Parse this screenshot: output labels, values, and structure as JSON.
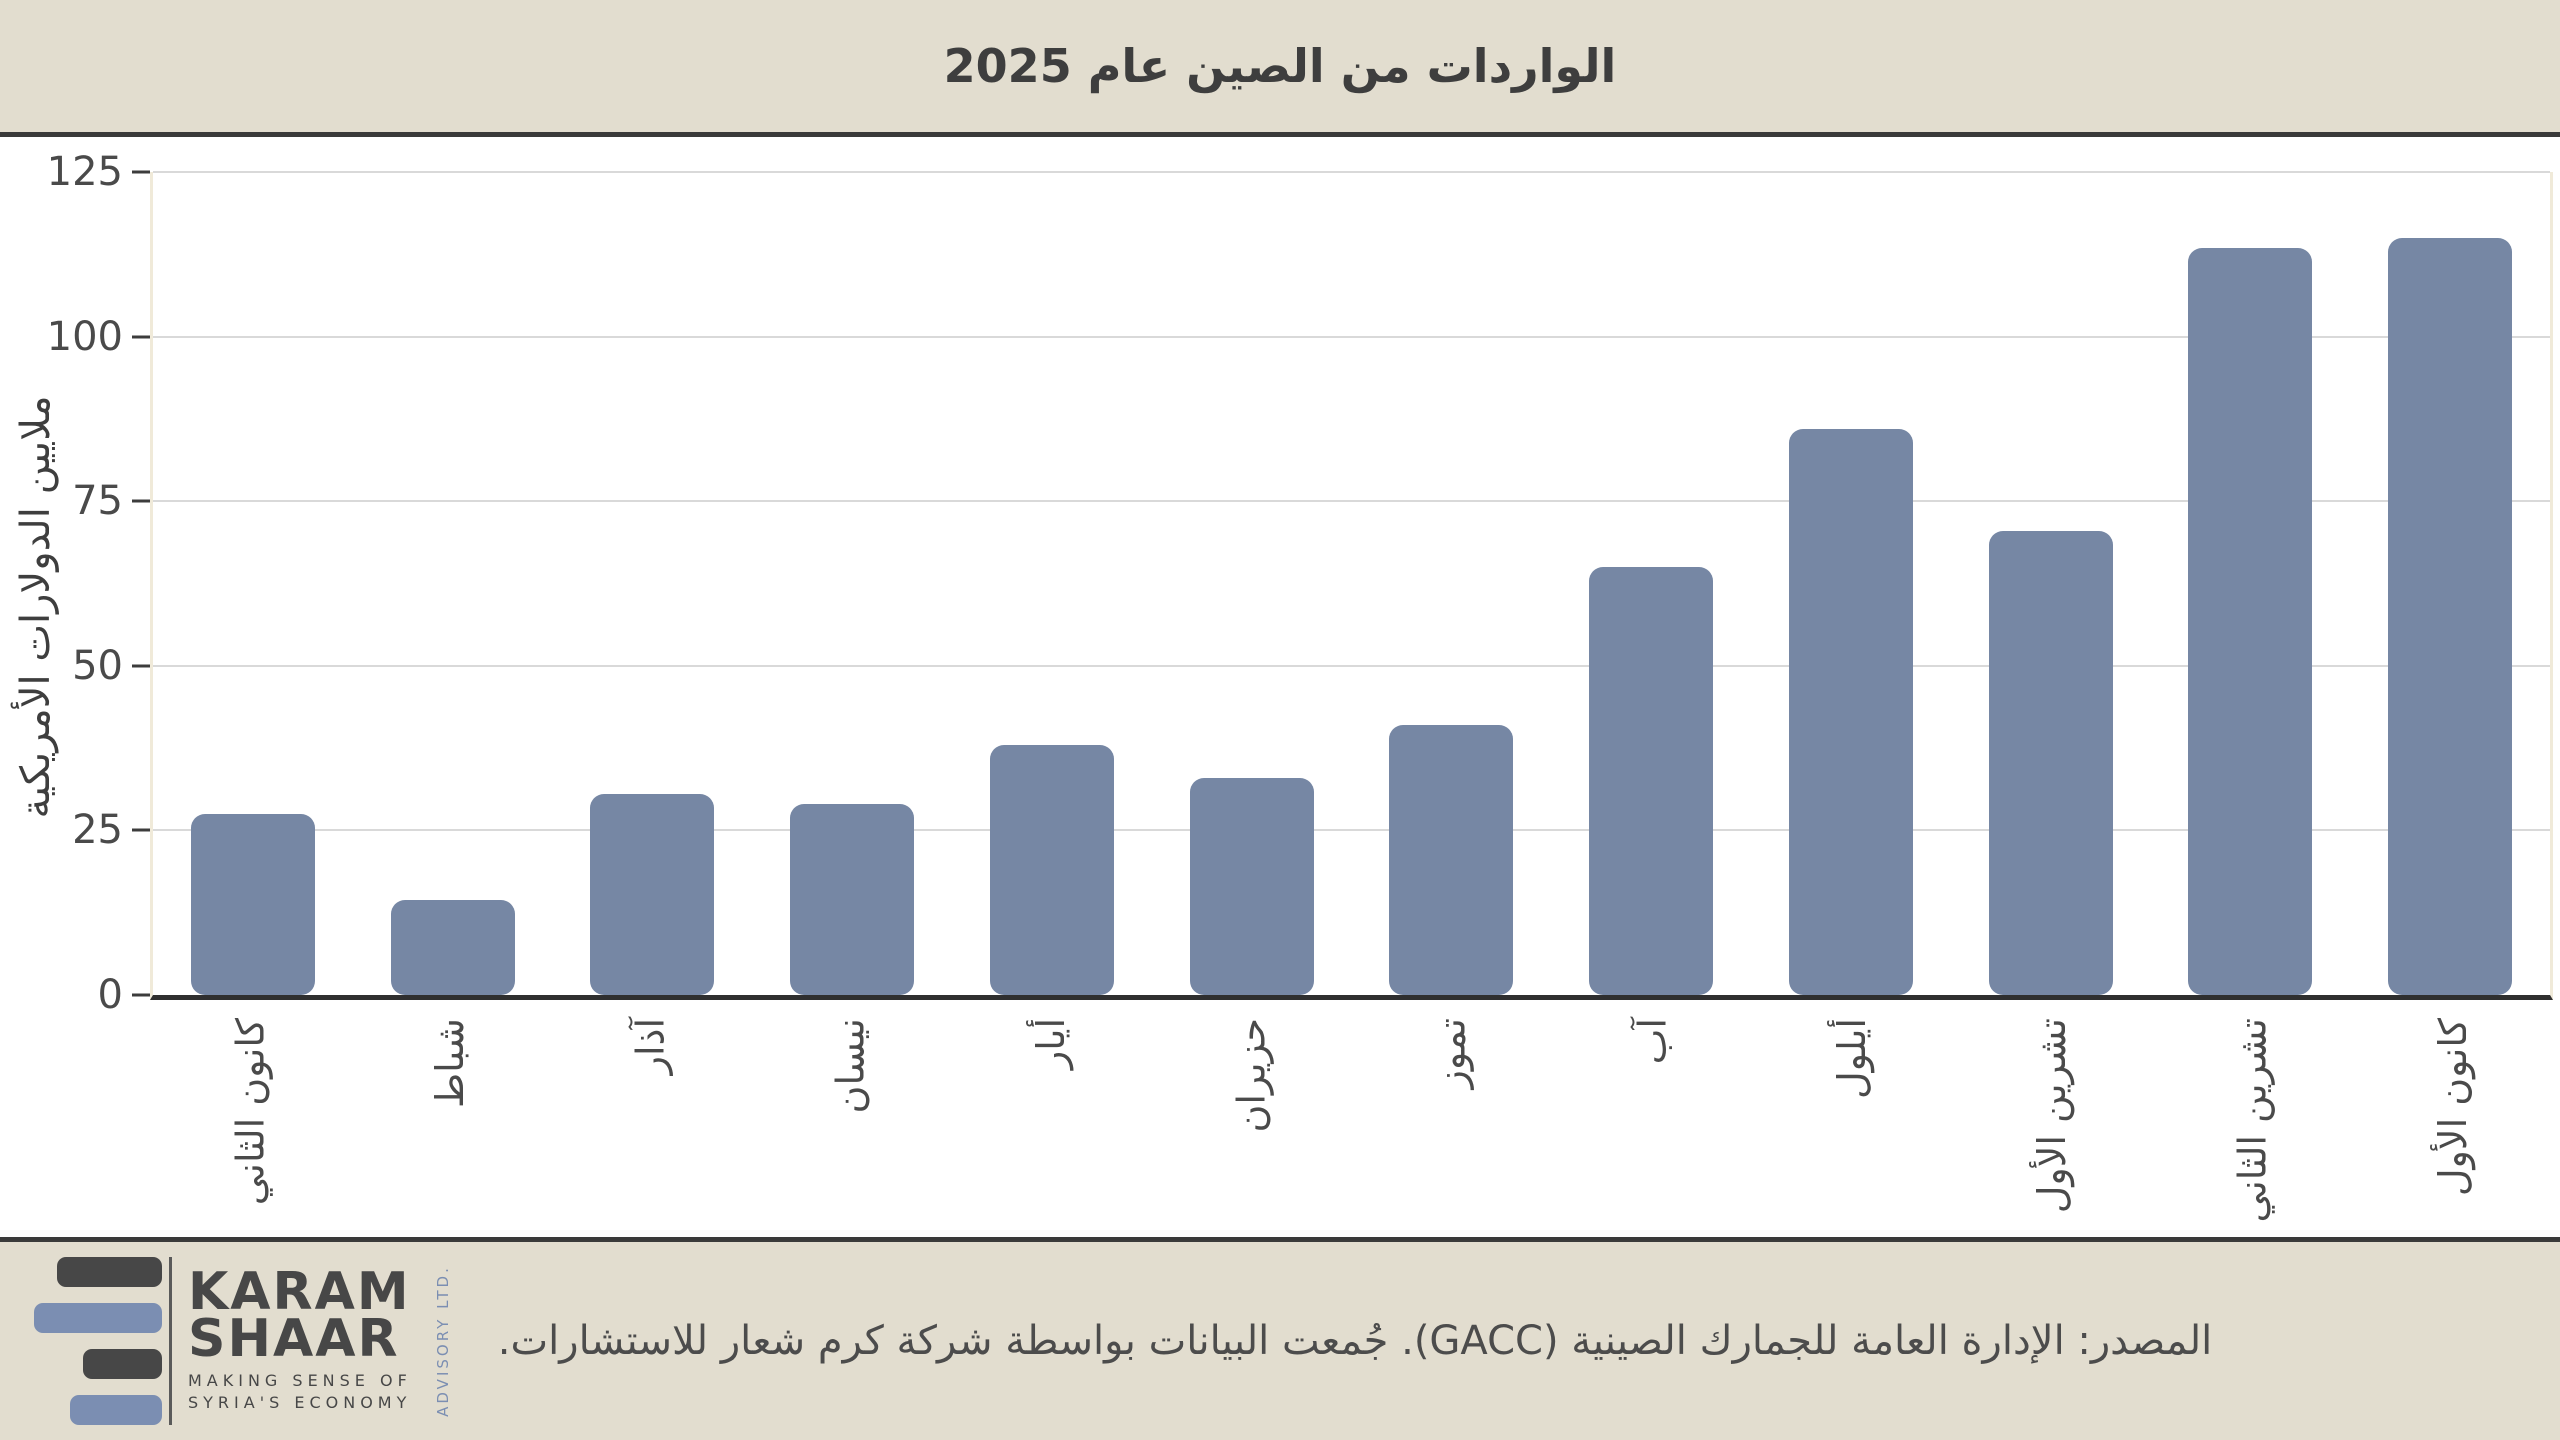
{
  "header": {
    "title": "الواردات من الصين عام 2025"
  },
  "chart_data": {
    "type": "bar",
    "title": "الواردات من الصين عام 2025",
    "categories": [
      "كانون الثاني",
      "شباط",
      "آذار",
      "نيسان",
      "أيار",
      "حزيران",
      "تموز",
      "آب",
      "أيلول",
      "تشرين الأول",
      "تشرين الثاني",
      "كانون الأول"
    ],
    "values": [
      27.5,
      14.5,
      30.5,
      29,
      38,
      33,
      41,
      65,
      86,
      70.5,
      113.5,
      115
    ],
    "xlabel": "",
    "ylabel": "ملايين الدولارات الأمريكية",
    "ylim": [
      0,
      125
    ],
    "yticks": [
      0,
      25,
      50,
      75,
      100,
      125
    ],
    "grid": true,
    "legend": false,
    "bar_color": "#7687a4"
  },
  "footer": {
    "source_text": "المصدر: الإدارة العامة للجمارك الصينية (GACC). جُمعت البيانات بواسطة شركة كرم شعار للاستشارات.",
    "logo": {
      "line1": "KARAM",
      "line2": "SHAAR",
      "tagline1": "MAKING SENSE OF",
      "tagline2": "SYRIA'S ECONOMY",
      "side_text": "ADVISORY LTD."
    }
  },
  "colors": {
    "beige": "#e2ddcf",
    "dark-line": "#3a3a3a",
    "axis": "#2f2f2f",
    "grid": "#d9d9d9",
    "cream": "#f0ead9",
    "bar": "#7687a4",
    "text-dark": "#3e3e3e",
    "text-mid": "#4a4a4a",
    "logo-dark": "#474747",
    "logo-blue": "#7b8eb2"
  }
}
